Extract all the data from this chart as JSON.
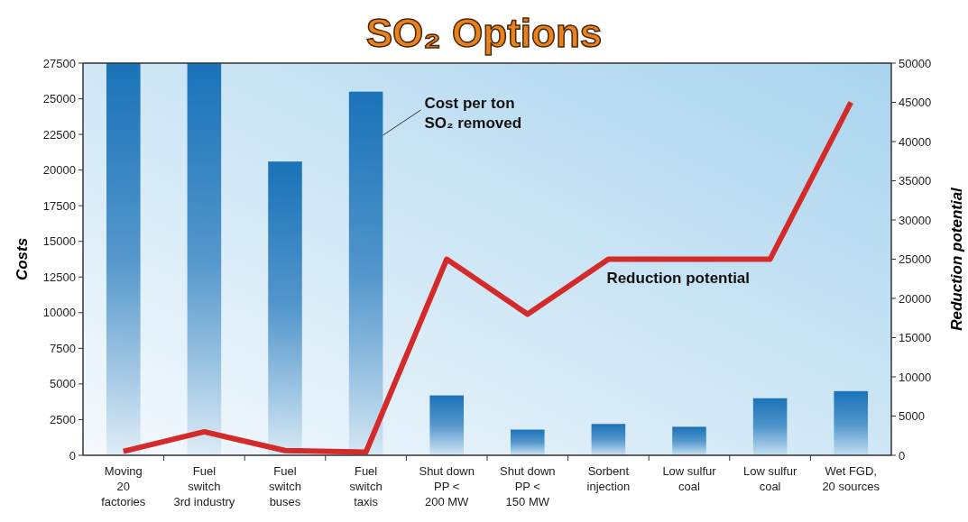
{
  "chart_data": {
    "type": "bar",
    "title": "SO₂ Options",
    "categories": [
      "Moving\n20\nfactories",
      "Fuel\nswitch\n3rd industry",
      "Fuel\nswitch\nbuses",
      "Fuel\nswitch\ntaxis",
      "Shut down\nPP <\n200 MW",
      "Shut down\nPP <\n150 MW",
      "Sorbent\ninjection",
      "Low sulfur\ncoal",
      "Low sulfur\ncoal",
      "Wet FGD,\n20 sources"
    ],
    "series": [
      {
        "name": "Cost per ton SO₂ removed",
        "color": "#1a72b8",
        "values": [
          27500,
          27500,
          20600,
          25500,
          4200,
          1800,
          2200,
          2000,
          4000,
          4500
        ]
      },
      {
        "name": "Reduction potential",
        "type": "line",
        "axis": "y2",
        "color": "#d42a2a",
        "values": [
          500,
          3000,
          600,
          400,
          25000,
          18000,
          25000,
          25000,
          25000,
          45000
        ]
      }
    ],
    "ylabel": "Costs",
    "y2label": "Reduction potential",
    "ylim": [
      0,
      27500
    ],
    "yticks": [
      0,
      2500,
      5000,
      7500,
      10000,
      12500,
      15000,
      17500,
      20000,
      22500,
      25000,
      27500
    ],
    "y2lim": [
      0,
      50000
    ],
    "y2ticks": [
      0,
      5000,
      10000,
      15000,
      20000,
      25000,
      30000,
      35000,
      40000,
      45000,
      50000
    ],
    "grid": false,
    "marker": "none",
    "line_style": "solid"
  }
}
